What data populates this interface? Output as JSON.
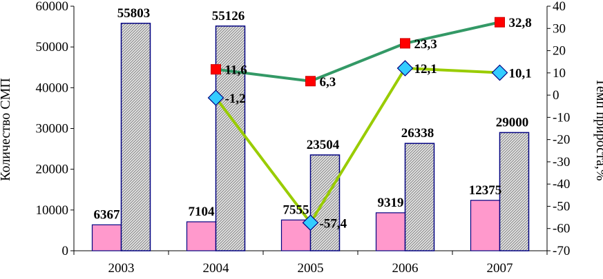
{
  "chart_data": {
    "type": "bar",
    "categories": [
      "2003",
      "2004",
      "2005",
      "2006",
      "2007"
    ],
    "ylabel": "Количество СМП",
    "y2label": "Темп прироста,%",
    "ylim": [
      0,
      60000
    ],
    "y2lim": [
      -70,
      40
    ],
    "yticks": [
      "0",
      "10000",
      "20000",
      "30000",
      "40000",
      "50000",
      "60000"
    ],
    "y2ticks": [
      "-70",
      "-60",
      "-50",
      "-40",
      "-30",
      "-20",
      "-10",
      "0",
      "10",
      "20",
      "30",
      "40"
    ],
    "grid": false,
    "bar_series": [
      {
        "values": [
          6367,
          7104,
          7555,
          9319,
          12375
        ],
        "labels": [
          "6367",
          "7104",
          "7555",
          "9319",
          "12375"
        ],
        "color": "#ff99cc",
        "edge": "#000080"
      },
      {
        "values": [
          55803,
          55126,
          23504,
          26338,
          29000
        ],
        "labels": [
          "55803",
          "55126",
          "23504",
          "26338",
          "29000"
        ],
        "color": "#d9d9d9",
        "pattern": "diagonal-hatch",
        "edge": "#000080"
      }
    ],
    "line_series": [
      {
        "categories": [
          "2004",
          "2005",
          "2006",
          "2007"
        ],
        "values": [
          11.6,
          6.3,
          23.3,
          32.8
        ],
        "labels": [
          "11,6",
          "6,3",
          "23,3",
          "32,8"
        ],
        "axis": "right",
        "color": "#339966",
        "marker": "square",
        "marker_color": "#ff0000"
      },
      {
        "categories": [
          "2004",
          "2005",
          "2006",
          "2007"
        ],
        "values": [
          -1.2,
          -57.4,
          12.1,
          10.1
        ],
        "labels": [
          "-1,2",
          "-57,4",
          "12,1",
          "10,1"
        ],
        "axis": "right",
        "color": "#99cc00",
        "marker": "diamond",
        "marker_color": "#33ccff"
      }
    ]
  }
}
